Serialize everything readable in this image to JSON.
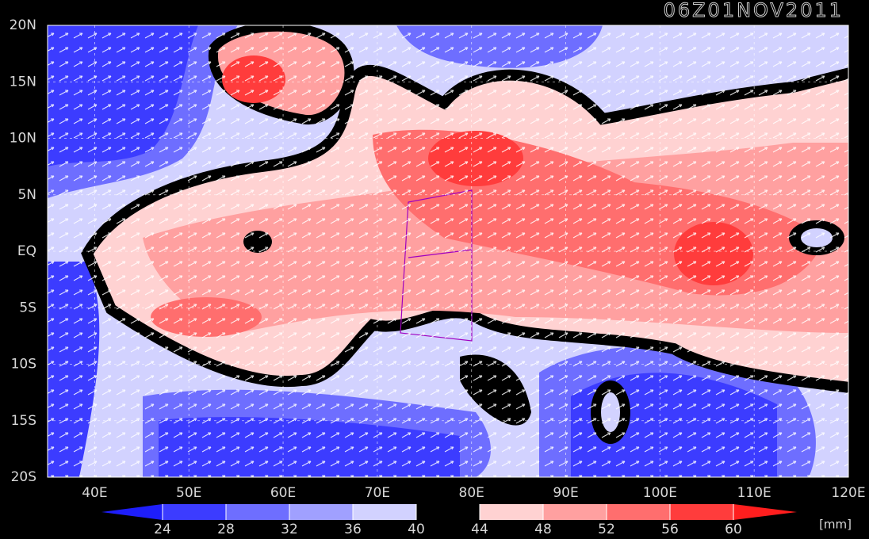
{
  "map": {
    "title": "06Z01NOV2011",
    "lon_range": [
      35,
      120
    ],
    "lat_range": [
      -20,
      20
    ],
    "lon_ticks": [
      {
        "value": 40,
        "label": "40E"
      },
      {
        "value": 50,
        "label": "50E"
      },
      {
        "value": 60,
        "label": "60E"
      },
      {
        "value": 70,
        "label": "70E"
      },
      {
        "value": 80,
        "label": "80E"
      },
      {
        "value": 90,
        "label": "90E"
      },
      {
        "value": 100,
        "label": "100E"
      },
      {
        "value": 110,
        "label": "110E"
      },
      {
        "value": 120,
        "label": "120E"
      }
    ],
    "lat_ticks": [
      {
        "value": 20,
        "label": "20N"
      },
      {
        "value": 15,
        "label": "15N"
      },
      {
        "value": 10,
        "label": "10N"
      },
      {
        "value": 5,
        "label": "5N"
      },
      {
        "value": 0,
        "label": "EQ"
      },
      {
        "value": -5,
        "label": "5S"
      },
      {
        "value": -10,
        "label": "10S"
      },
      {
        "value": -15,
        "label": "15S"
      },
      {
        "value": -20,
        "label": "20S"
      }
    ],
    "colorbar": {
      "ticks": [
        24,
        28,
        32,
        36,
        40,
        44,
        48,
        52,
        56,
        60
      ],
      "colors": [
        "#1e1efa",
        "#3c3cff",
        "#6e6eff",
        "#a0a0ff",
        "#d2d2ff",
        "#000000",
        "#ffd2d2",
        "#ffa0a0",
        "#ff6e6e",
        "#ff3c3c",
        "#ff1e1e"
      ],
      "unit": "[mm]"
    }
  }
}
